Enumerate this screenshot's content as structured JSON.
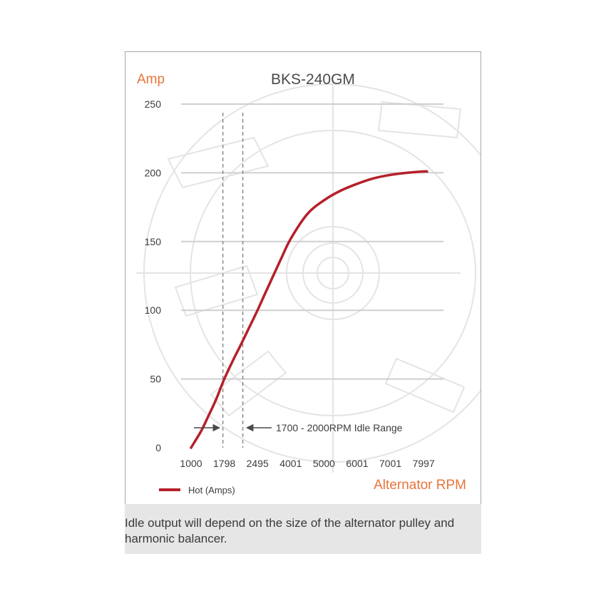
{
  "chart_data": {
    "type": "line",
    "title": "BKS-240GM",
    "ylabel": "Amp",
    "xlabel": "Alternator RPM",
    "ylim": [
      0,
      250
    ],
    "yticks": [
      0,
      50,
      100,
      150,
      200,
      250
    ],
    "xtick_labels": [
      "1000",
      "1798",
      "2495",
      "4001",
      "5000",
      "6001",
      "7001",
      "7997"
    ],
    "grid": true,
    "legend_placement": "bottom-left",
    "series": [
      {
        "name": "Hot (Amps)",
        "color": "#b5202b",
        "x_tick_position": [
          0,
          0.3,
          0.5,
          0.75,
          1,
          1.25,
          1.5,
          1.8,
          2,
          2.3,
          2.7,
          3,
          3.5,
          4,
          4.5,
          5,
          5.5,
          6,
          6.5,
          7,
          7.1
        ],
        "y": [
          0,
          12,
          22,
          35,
          50,
          63,
          75,
          90,
          100,
          116,
          137,
          152,
          170,
          180,
          187,
          192,
          196,
          198.5,
          200,
          201,
          201
        ]
      }
    ],
    "reference_lines": {
      "x_tick_position": [
        1.0,
        1.6
      ],
      "style": "dashed",
      "annotation": "1700 - 2000RPM Idle Range"
    }
  },
  "caption": "Idle output will depend on the size of the alternator pulley and harmonic balancer."
}
